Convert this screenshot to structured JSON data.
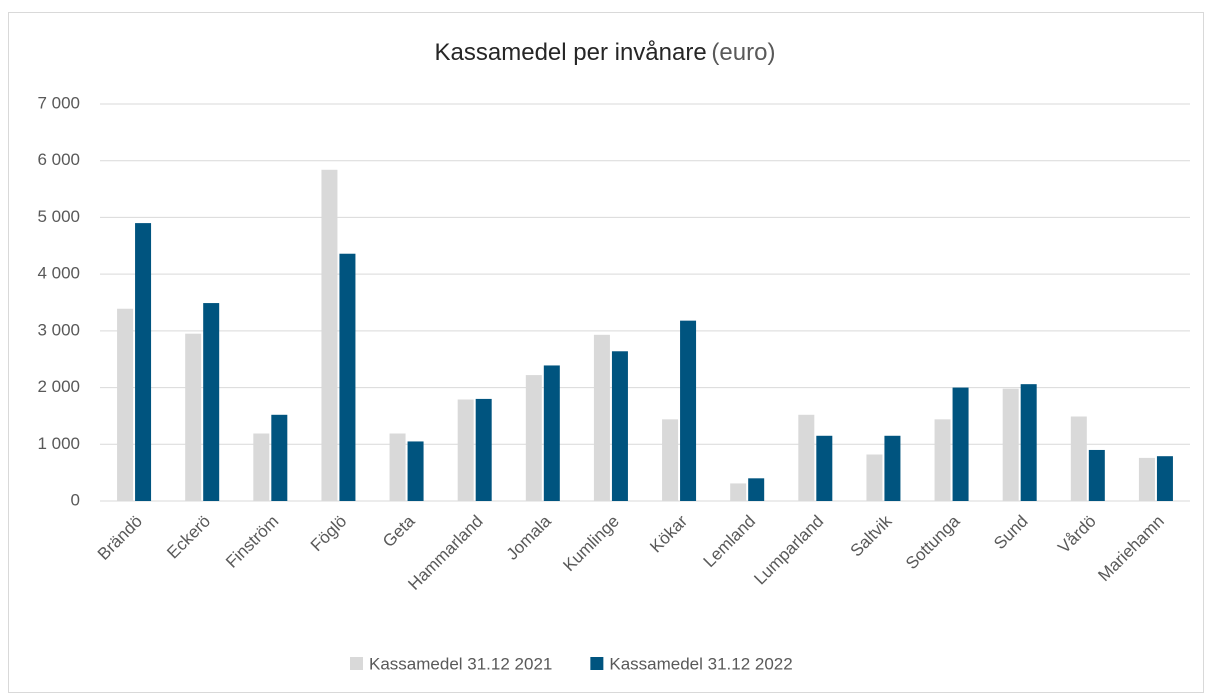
{
  "chart_data": {
    "type": "bar",
    "title": "Kassamedel per invånare",
    "unit": "(euro)",
    "categories": [
      "Brändö",
      "Eckerö",
      "Finström",
      "Föglö",
      "Geta",
      "Hammarland",
      "Jomala",
      "Kumlinge",
      "Kökar",
      "Lemland",
      "Lumparland",
      "Saltvik",
      "Sottunga",
      "Sund",
      "Vårdö",
      "Mariehamn"
    ],
    "series": [
      {
        "name": "Kassamedel 31.12 2021",
        "color": "#d9d9d9",
        "values": [
          3390,
          2950,
          1190,
          5840,
          1190,
          1790,
          2220,
          2930,
          1440,
          310,
          1520,
          820,
          1440,
          1980,
          1490,
          760
        ]
      },
      {
        "name": "Kassamedel 31.12 2022",
        "color": "#00547f",
        "values": [
          4900,
          3490,
          1520,
          4360,
          1050,
          1800,
          2390,
          2640,
          3180,
          400,
          1150,
          1150,
          2000,
          2060,
          900,
          790
        ]
      }
    ],
    "ylim": [
      0,
      7000
    ],
    "yticks": [
      0,
      {
        "value": 1000,
        "label": "1 000"
      },
      {
        "value": 2000,
        "label": "2 000"
      },
      {
        "value": 3000,
        "label": "3 000"
      },
      {
        "value": 4000,
        "label": "4 000"
      },
      {
        "value": 5000,
        "label": "5 000"
      },
      {
        "value": 6000,
        "label": "6 000"
      },
      {
        "value": 7000,
        "label": "7 000"
      }
    ],
    "grid": true,
    "legend": "bottom"
  }
}
